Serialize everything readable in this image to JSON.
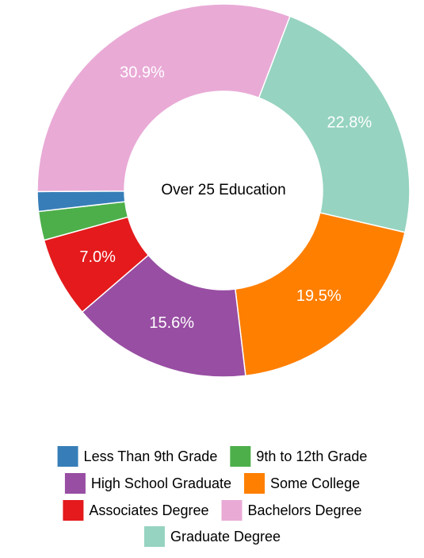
{
  "chart_data": {
    "type": "pie",
    "title": "Over 25 Education",
    "categories": [
      "Less Than 9th Grade",
      "9th to 12th Grade",
      "High School Graduate",
      "Some College",
      "Associates Degree",
      "Bachelors Degree",
      "Graduate Degree"
    ],
    "values": [
      1.7,
      2.5,
      15.6,
      19.5,
      7.0,
      30.9,
      22.8
    ],
    "value_labels": [
      null,
      null,
      "15.6%",
      "19.5%",
      "7.0%",
      "30.9%",
      "22.8%"
    ],
    "colors": [
      "#377eb8",
      "#4daf4a",
      "#984ea3",
      "#ff7f00",
      "#e41a1c",
      "#e9aad6",
      "#96d3c0"
    ]
  }
}
